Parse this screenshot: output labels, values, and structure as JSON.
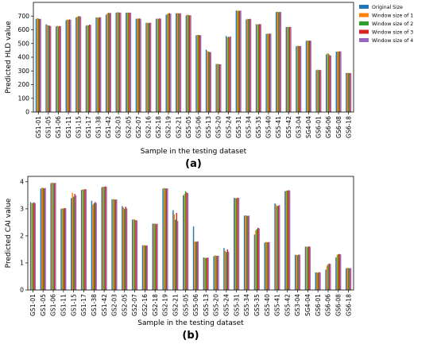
{
  "chart_data": [
    {
      "type": "bar",
      "panel_label": "(a)",
      "title": "",
      "xlabel": "Sample in the testing dataset",
      "ylabel": "Predicted HLD value",
      "ylim": [
        0,
        800
      ],
      "yticks": [
        0,
        100,
        200,
        300,
        400,
        500,
        600,
        700
      ],
      "grid": false,
      "legend_position": "top-right",
      "categories": [
        "GS1-01",
        "GS1-05",
        "GS1-06",
        "GS1-11",
        "GS1-15",
        "GS1-17",
        "GS1-38",
        "GS1-42",
        "GS2-03",
        "GS2-05",
        "GS2-07",
        "GS2-16",
        "GS2-18",
        "GS2-19",
        "GS2-21",
        "GS5-05",
        "GS5-06",
        "GS5-13",
        "GS5-20",
        "GS5-24",
        "GS5-31",
        "GS5-34",
        "GS5-35",
        "GS5-40",
        "GS5-41",
        "GS5-42",
        "GS3-04",
        "SG4-04",
        "GS6-01",
        "GS6-06",
        "GS6-08",
        "GS6-18"
      ],
      "series": [
        {
          "name": "Original Size",
          "color": "#1f77b4",
          "values": [
            680,
            640,
            625,
            670,
            690,
            630,
            690,
            710,
            725,
            725,
            680,
            650,
            680,
            710,
            720,
            705,
            560,
            455,
            350,
            555,
            740,
            675,
            640,
            570,
            730,
            620,
            480,
            520,
            305,
            420,
            440,
            285
          ]
        },
        {
          "name": "Window size of 1",
          "color": "#ff7f0e",
          "values": [
            685,
            635,
            630,
            675,
            695,
            635,
            690,
            720,
            728,
            725,
            682,
            652,
            682,
            715,
            722,
            710,
            562,
            445,
            352,
            545,
            740,
            680,
            640,
            572,
            732,
            622,
            484,
            522,
            310,
            430,
            442,
            286
          ]
        },
        {
          "name": "Window size of 2",
          "color": "#2ca02c",
          "values": [
            682,
            632,
            625,
            672,
            698,
            632,
            688,
            725,
            728,
            726,
            681,
            650,
            680,
            720,
            720,
            708,
            563,
            440,
            350,
            550,
            738,
            678,
            640,
            571,
            730,
            620,
            482,
            520,
            308,
            425,
            441,
            285
          ]
        },
        {
          "name": "Window size of 3",
          "color": "#d62728",
          "values": [
            678,
            630,
            628,
            676,
            700,
            638,
            692,
            722,
            725,
            724,
            683,
            651,
            683,
            722,
            721,
            705,
            561,
            438,
            348,
            548,
            739,
            680,
            642,
            573,
            729,
            621,
            481,
            521,
            306,
            415,
            443,
            284
          ]
        },
        {
          "name": "Window size of 4",
          "color": "#9467bd",
          "values": [
            680,
            628,
            626,
            674,
            696,
            636,
            690,
            724,
            726,
            725,
            680,
            652,
            681,
            718,
            720,
            706,
            560,
            436,
            349,
            552,
            740,
            679,
            641,
            572,
            731,
            620,
            483,
            520,
            307,
            412,
            442,
            285
          ]
        }
      ]
    },
    {
      "type": "bar",
      "panel_label": "(b)",
      "title": "",
      "xlabel": "Sample in the testing dataset",
      "ylabel": "Predicted CAI value",
      "ylim": [
        0,
        4.2
      ],
      "yticks": [
        0,
        1,
        2,
        3,
        4
      ],
      "grid": false,
      "categories": [
        "GS1-01",
        "GS1-05",
        "GS1-06",
        "GS1-11",
        "GS1-15",
        "GS1-17",
        "GS1-38",
        "GS1-42",
        "GS2-03",
        "GS2-05",
        "GS2-07",
        "GS2-16",
        "GS2-18",
        "GS2-19",
        "GS2-21",
        "GS5-05",
        "GS5-06",
        "GS5-13",
        "GS5-20",
        "GS5-24",
        "GS5-31",
        "GS5-34",
        "GS5-35",
        "GS5-40",
        "GS5-41",
        "GS5-42",
        "GS3-04",
        "SG4-04",
        "GS6-01",
        "GS6-06",
        "GS6-08",
        "GS6-18"
      ],
      "series": [
        {
          "name": "Original Size",
          "color": "#1f77b4",
          "values": [
            3.25,
            3.75,
            3.95,
            3.0,
            3.4,
            3.7,
            3.3,
            3.8,
            3.35,
            3.1,
            2.6,
            1.65,
            2.45,
            3.75,
            2.95,
            3.5,
            2.35,
            1.2,
            1.25,
            1.55,
            3.4,
            2.75,
            2.05,
            1.75,
            3.2,
            3.65,
            1.3,
            1.6,
            0.65,
            0.75,
            1.2,
            0.8
          ]
        },
        {
          "name": "Window size of 1",
          "color": "#ff7f0e",
          "values": [
            3.2,
            3.78,
            3.97,
            3.02,
            3.6,
            3.72,
            3.15,
            3.82,
            3.36,
            3.05,
            2.62,
            1.66,
            2.46,
            3.77,
            2.8,
            3.55,
            1.8,
            1.2,
            1.28,
            1.45,
            3.4,
            2.76,
            2.2,
            1.78,
            3.15,
            3.68,
            1.3,
            1.6,
            0.65,
            0.9,
            1.3,
            0.82
          ]
        },
        {
          "name": "Window size of 2",
          "color": "#2ca02c",
          "values": [
            3.22,
            3.77,
            3.96,
            3.01,
            3.45,
            3.71,
            3.2,
            3.81,
            3.35,
            3.0,
            2.6,
            1.65,
            2.45,
            3.76,
            2.6,
            3.65,
            1.78,
            1.18,
            1.27,
            1.4,
            3.39,
            2.75,
            2.25,
            1.76,
            3.1,
            3.67,
            1.29,
            1.6,
            0.64,
            0.95,
            1.32,
            0.81
          ]
        },
        {
          "name": "Window size of 3",
          "color": "#d62728",
          "values": [
            3.24,
            3.76,
            3.95,
            3.03,
            3.55,
            3.73,
            3.25,
            3.83,
            3.34,
            3.08,
            2.58,
            1.64,
            2.44,
            3.75,
            2.85,
            3.6,
            1.79,
            1.19,
            1.26,
            1.5,
            3.41,
            2.74,
            2.3,
            1.77,
            3.12,
            3.69,
            1.31,
            1.61,
            0.66,
            0.98,
            1.33,
            0.8
          ]
        },
        {
          "name": "Window size of 4",
          "color": "#9467bd",
          "values": [
            3.21,
            3.77,
            3.96,
            3.02,
            3.5,
            3.72,
            3.22,
            3.82,
            3.35,
            3.02,
            2.57,
            1.65,
            2.45,
            3.76,
            2.55,
            3.58,
            1.8,
            1.2,
            1.27,
            1.42,
            3.4,
            2.75,
            2.28,
            1.77,
            3.14,
            3.68,
            1.3,
            1.6,
            0.65,
            0.96,
            1.32,
            0.81
          ]
        }
      ]
    }
  ]
}
